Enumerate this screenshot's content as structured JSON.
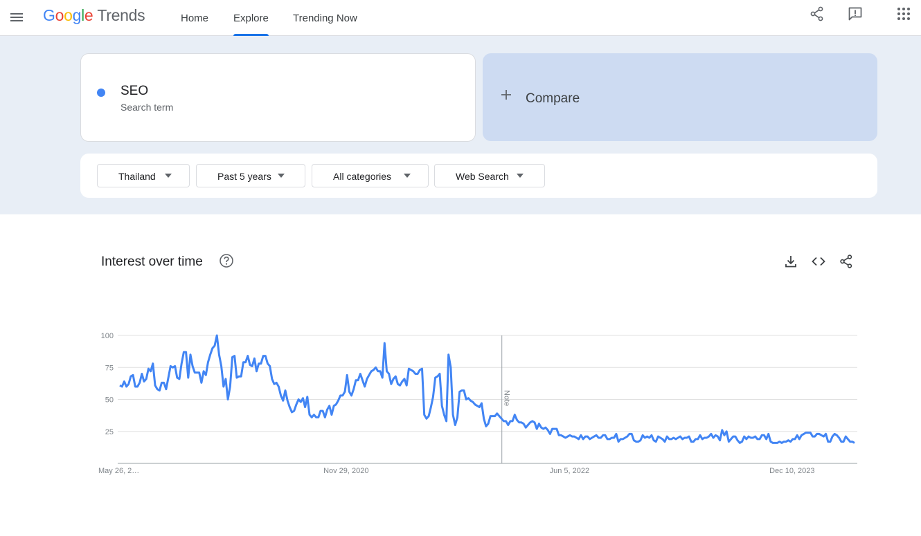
{
  "header": {
    "logo": {
      "g1": "G",
      "g2": "o",
      "g3": "o",
      "g4": "g",
      "g5": "l",
      "g6": "e",
      "product": "Trends"
    },
    "nav": [
      {
        "label": "Home",
        "active": false
      },
      {
        "label": "Explore",
        "active": true
      },
      {
        "label": "Trending Now",
        "active": false
      }
    ],
    "icons": [
      "menu-icon",
      "share-icon",
      "feedback-icon",
      "apps-icon"
    ]
  },
  "search": {
    "term": "SEO",
    "term_type": "Search term",
    "term_color": "#4285f4",
    "compare_label": "Compare"
  },
  "filters": {
    "region": "Thailand",
    "time": "Past 5 years",
    "category": "All categories",
    "property": "Web Search"
  },
  "interest_card": {
    "title": "Interest over time",
    "icons": [
      "help-icon",
      "download-icon",
      "embed-icon",
      "share-icon"
    ],
    "note_label": "Note"
  },
  "chart_data": {
    "type": "line",
    "title": "Interest over time",
    "x_tick_labels": [
      "May 26, 2…",
      "Nov 29, 2020",
      "Jun 5, 2022",
      "Dec 10, 2023"
    ],
    "y_ticks": [
      25,
      50,
      75,
      100
    ],
    "ylim": [
      0,
      100
    ],
    "grid": true,
    "note_marker_index": 97,
    "series": [
      {
        "name": "SEO",
        "color": "#4285f4",
        "values": [
          61,
          60,
          64,
          60,
          62,
          68,
          69,
          60,
          60,
          63,
          70,
          64,
          66,
          74,
          72,
          78,
          61,
          58,
          57,
          63,
          63,
          58,
          67,
          76,
          75,
          76,
          67,
          66,
          78,
          87,
          87,
          67,
          85,
          76,
          71,
          71,
          71,
          63,
          72,
          69,
          79,
          85,
          90,
          92,
          100,
          85,
          76,
          60,
          66,
          50,
          60,
          83,
          84,
          67,
          68,
          68,
          79,
          79,
          84,
          77,
          76,
          82,
          72,
          78,
          78,
          84,
          84,
          78,
          76,
          66,
          62,
          63,
          60,
          53,
          49,
          57,
          49,
          44,
          40,
          41,
          46,
          50,
          48,
          51,
          44,
          52,
          38,
          36,
          38,
          36,
          36,
          41,
          41,
          36,
          42,
          45,
          38,
          45,
          46,
          49,
          53,
          53,
          56,
          69,
          56,
          53,
          58,
          65,
          65,
          70,
          65,
          60,
          66,
          69,
          72,
          73,
          75,
          72,
          72,
          67,
          94,
          72,
          70,
          62,
          66,
          68,
          62,
          61,
          64,
          66,
          61,
          74,
          73,
          72,
          70,
          70,
          73,
          74,
          38,
          35,
          37,
          44,
          52,
          67,
          68,
          70,
          45,
          38,
          33,
          85,
          75,
          38,
          30,
          36,
          56,
          57,
          57,
          50,
          51,
          49,
          48,
          46,
          45,
          44,
          47,
          35,
          29,
          31,
          37,
          37,
          37,
          39,
          37,
          35,
          33,
          33,
          30,
          33,
          33,
          38,
          34,
          32,
          32,
          31,
          28,
          30,
          32,
          33,
          32,
          27,
          31,
          28,
          27,
          28,
          26,
          23,
          27,
          27,
          27,
          22,
          22,
          21,
          20,
          21,
          22,
          21,
          21,
          20,
          19,
          22,
          19,
          21,
          21,
          19,
          20,
          21,
          22,
          20,
          20,
          22,
          22,
          19,
          19,
          20,
          20,
          23,
          17,
          19,
          19,
          20,
          21,
          23,
          23,
          18,
          17,
          17,
          18,
          22,
          20,
          21,
          20,
          22,
          18,
          17,
          21,
          20,
          19,
          17,
          21,
          19,
          19,
          20,
          19,
          20,
          21,
          19,
          20,
          20,
          21,
          17,
          17,
          19,
          19,
          22,
          19,
          20,
          20,
          21,
          23,
          20,
          22,
          21,
          18,
          26,
          22,
          25,
          17,
          19,
          21,
          21,
          18,
          16,
          17,
          21,
          19,
          21,
          20,
          20,
          21,
          19,
          19,
          22,
          22,
          19,
          23,
          17,
          16,
          16,
          16,
          17,
          16,
          17,
          17,
          18,
          17,
          19,
          19,
          22,
          19,
          22,
          23,
          24,
          24,
          24,
          21,
          21,
          23,
          23,
          22,
          21,
          23,
          17,
          17,
          21,
          23,
          22,
          20,
          17,
          17,
          21,
          19,
          17,
          17,
          16
        ]
      }
    ]
  }
}
